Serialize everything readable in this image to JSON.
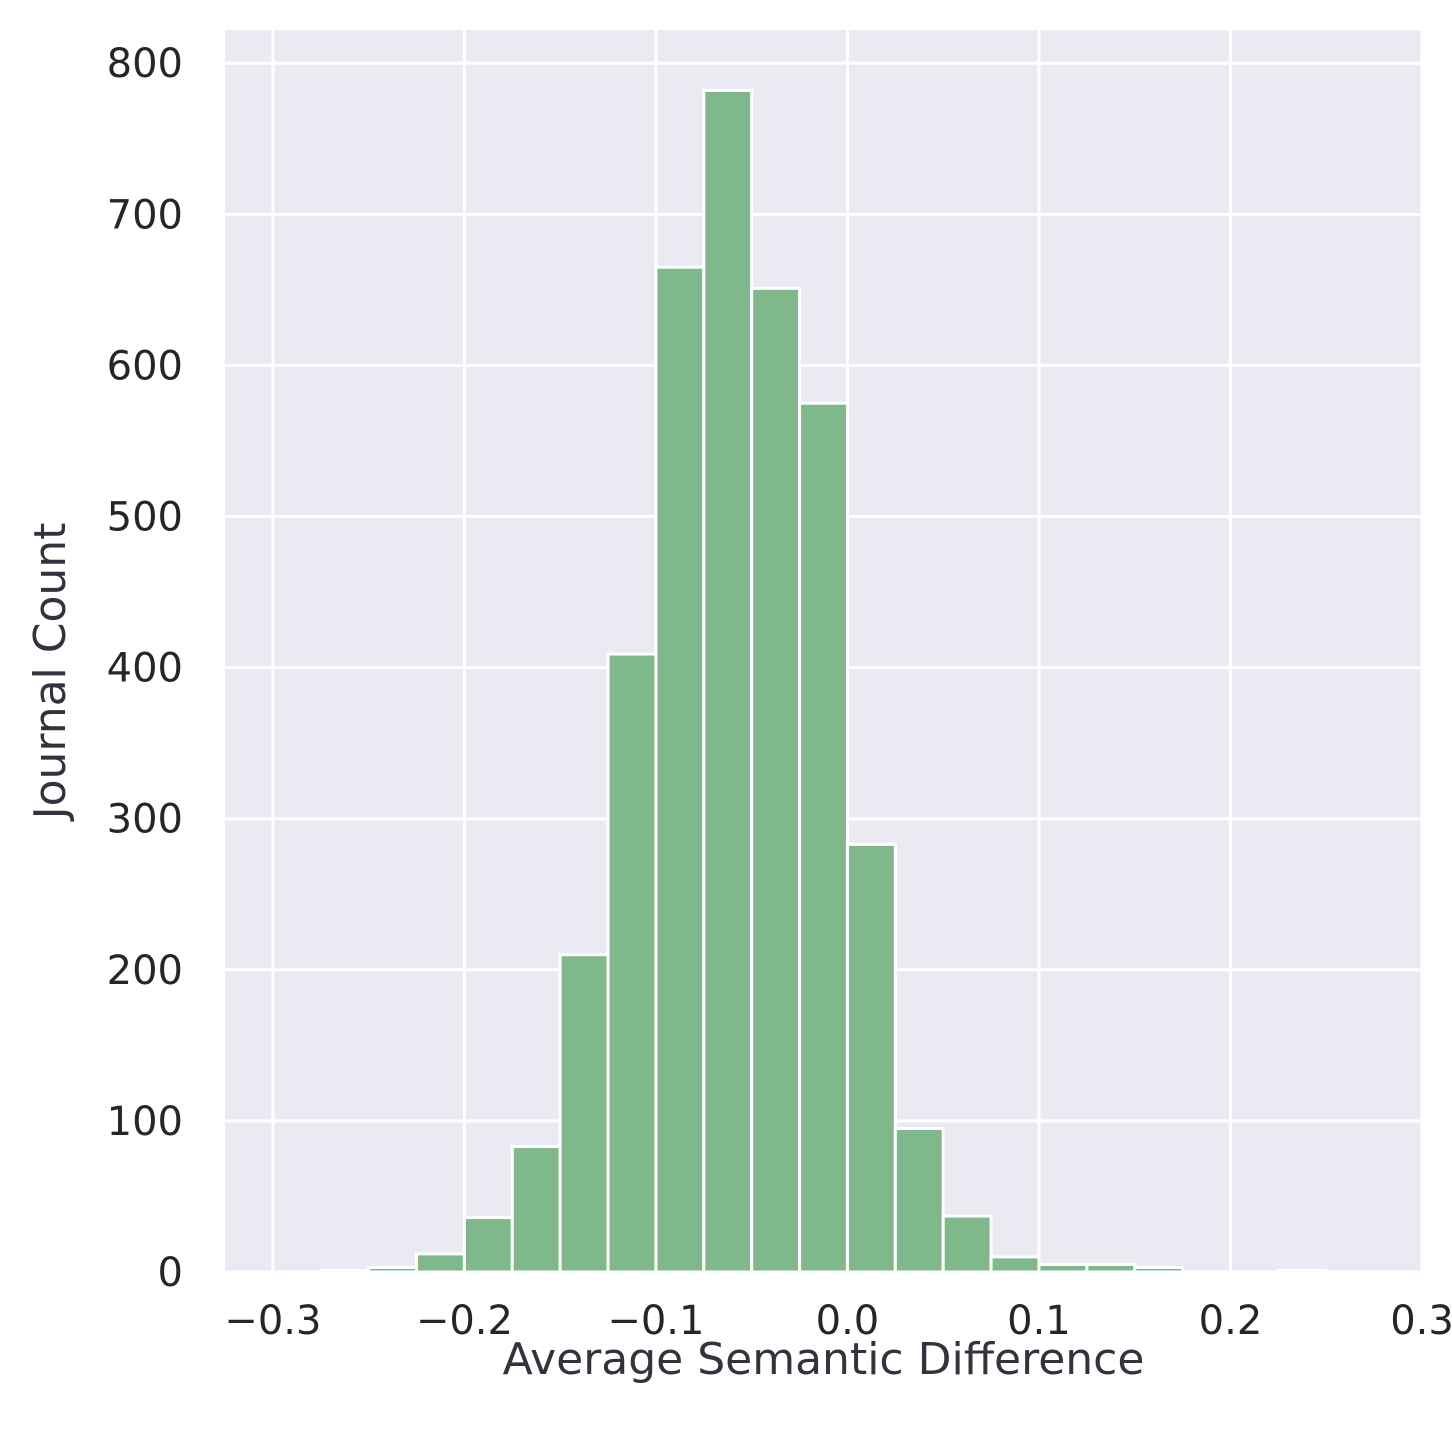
{
  "chart_data": {
    "type": "bar",
    "subtype": "histogram",
    "title": "",
    "xlabel": "Average Semantic Difference",
    "ylabel": "Journal Count",
    "xlim": [
      -0.325,
      0.3
    ],
    "ylim": [
      0,
      822
    ],
    "bin_width": 0.025,
    "bin_edges": [
      -0.275,
      -0.25,
      -0.225,
      -0.2,
      -0.175,
      -0.15,
      -0.125,
      -0.1,
      -0.075,
      -0.05,
      -0.025,
      0.0,
      0.025,
      0.05,
      0.075,
      0.1,
      0.125,
      0.15,
      0.175,
      0.2,
      0.225,
      0.25
    ],
    "values": [
      1,
      3,
      12,
      36,
      83,
      210,
      409,
      665,
      782,
      651,
      575,
      283,
      95,
      37,
      10,
      5,
      5,
      3,
      0,
      0,
      1
    ],
    "x_ticks": [
      -0.3,
      -0.2,
      -0.1,
      0.0,
      0.1,
      0.2,
      0.3
    ],
    "x_tick_labels": [
      "−0.3",
      "−0.2",
      "−0.1",
      "0.0",
      "0.1",
      "0.2",
      "0.3"
    ],
    "y_ticks": [
      0,
      100,
      200,
      300,
      400,
      500,
      600,
      700,
      800
    ],
    "y_tick_labels": [
      "0",
      "100",
      "200",
      "300",
      "400",
      "500",
      "600",
      "700",
      "800"
    ],
    "grid": true,
    "legend": "none",
    "colors": {
      "bar_fill": "#7fb98b",
      "bar_edge": "#ffffff",
      "plot_background": "#eaeaf2",
      "grid": "#ffffff"
    }
  }
}
